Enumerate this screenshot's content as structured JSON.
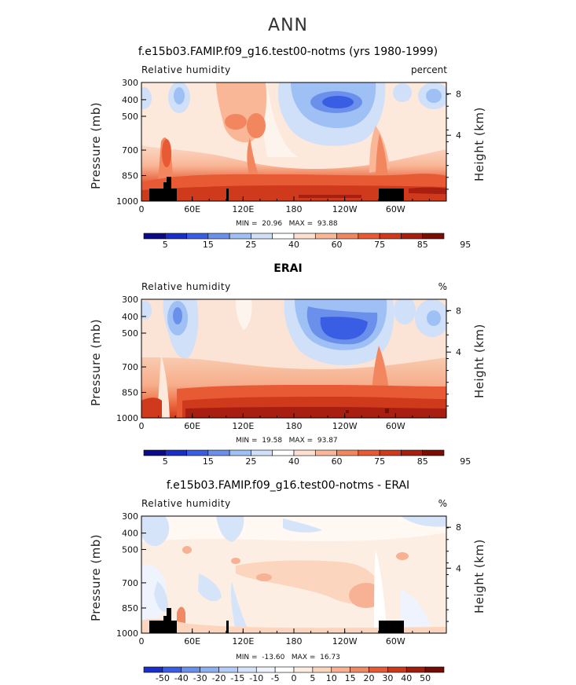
{
  "page_title": "ANN",
  "colors": {
    "model_palette": [
      "#0b0b8a",
      "#1a2fc7",
      "#3a5ee3",
      "#6a90ec",
      "#9ec0f4",
      "#cfe0f8",
      "#ffffff",
      "#fde0cf",
      "#f9b797",
      "#f2875f",
      "#e75a33",
      "#cf3a1c",
      "#a81e10",
      "#7a0e05"
    ],
    "diff_palette": [
      "#1a2fc7",
      "#3a5ee3",
      "#6a90ec",
      "#8fb0f0",
      "#b5cdf6",
      "#d6e4fa",
      "#eef3fd",
      "#ffffff",
      "#fdeee3",
      "#fbd5bd",
      "#f7b194",
      "#f08a65",
      "#e35c37",
      "#c93a1c",
      "#a01c0d",
      "#730b05"
    ],
    "land_mask": "#000000"
  },
  "axes": {
    "x_ticks": [
      "0",
      "60E",
      "120E",
      "180",
      "120W",
      "60W"
    ],
    "p_ticks": [
      "300",
      "400",
      "500",
      "700",
      "850",
      "1000"
    ],
    "h_ticks": [
      "8",
      "4"
    ],
    "left_label": "Pressure (mb)",
    "right_label": "Height (km)"
  },
  "panels": [
    {
      "title": "f.e15b03.FAMIP.f09_g16.test00-notms (yrs 1980-1999)",
      "left_title": "Relative humidity",
      "right_title": "percent",
      "min_label": "MIN =",
      "min_value": "20.96",
      "max_label": "MAX =",
      "max_value": "93.88",
      "colorbar_labels": [
        "5",
        "15",
        "25",
        "40",
        "60",
        "75",
        "85",
        "95"
      ]
    },
    {
      "title": "ERAI",
      "left_title": "Relative humidity",
      "right_title": "%",
      "min_label": "MIN =",
      "min_value": "19.58",
      "max_label": "MAX =",
      "max_value": "93.87",
      "colorbar_labels": [
        "5",
        "15",
        "25",
        "40",
        "60",
        "75",
        "85",
        "95"
      ]
    },
    {
      "title": "f.e15b03.FAMIP.f09_g16.test00-notms - ERAI",
      "left_title": "Relative humidity",
      "right_title": "%",
      "min_label": "MIN =",
      "min_value": "-13.60",
      "max_label": "MAX =",
      "max_value": "16.73",
      "colorbar_labels": [
        "-50",
        "-40",
        "-30",
        "-20",
        "-15",
        "-10",
        "-5",
        "0",
        "5",
        "10",
        "15",
        "20",
        "30",
        "40",
        "50"
      ]
    }
  ],
  "chart_data": [
    {
      "type": "heatmap",
      "title": "f.e15b03.FAMIP.f09_g16.test00-notms (yrs 1980-1999)",
      "variable": "Relative humidity",
      "units": "percent",
      "x": [
        "0",
        "60E",
        "120E",
        "180",
        "120W",
        "60W"
      ],
      "y": [
        "300",
        "400",
        "500",
        "700",
        "850",
        "1000"
      ],
      "min": 20.96,
      "max": 93.88,
      "levels": [
        5,
        10,
        15,
        20,
        25,
        30,
        40,
        50,
        60,
        70,
        75,
        80,
        85,
        90,
        95
      ]
    },
    {
      "type": "heatmap",
      "title": "ERAI",
      "variable": "Relative humidity",
      "units": "%",
      "x": [
        "0",
        "60E",
        "120E",
        "180",
        "120W",
        "60W"
      ],
      "y": [
        "300",
        "400",
        "500",
        "700",
        "850",
        "1000"
      ],
      "min": 19.58,
      "max": 93.87,
      "levels": [
        5,
        10,
        15,
        20,
        25,
        30,
        40,
        50,
        60,
        70,
        75,
        80,
        85,
        90,
        95
      ]
    },
    {
      "type": "heatmap",
      "title": "f.e15b03.FAMIP.f09_g16.test00-notms - ERAI",
      "variable": "Relative humidity",
      "units": "%",
      "x": [
        "0",
        "60E",
        "120E",
        "180",
        "120W",
        "60W"
      ],
      "y": [
        "300",
        "400",
        "500",
        "700",
        "850",
        "1000"
      ],
      "min": -13.6,
      "max": 16.73,
      "levels": [
        -50,
        -40,
        -30,
        -20,
        -15,
        -10,
        -5,
        0,
        5,
        10,
        15,
        20,
        30,
        40,
        50
      ]
    }
  ]
}
